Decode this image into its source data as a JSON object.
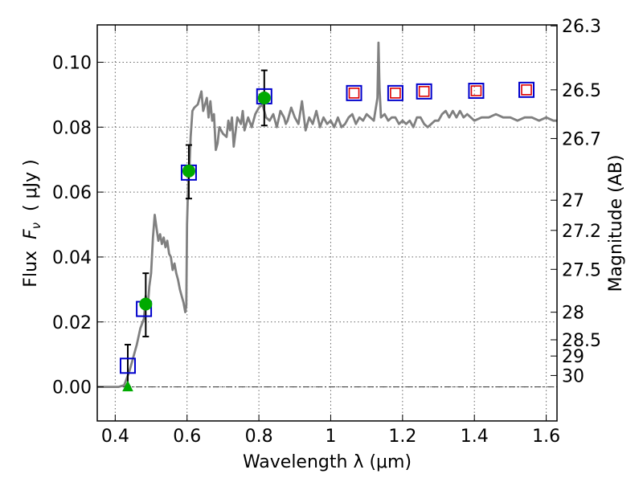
{
  "chart_data": {
    "type": "scatter",
    "xlabel": "Wavelength  λ (μm)",
    "ylabel": "Flux  F_ν  ( μJy )",
    "ylabel_parts": {
      "prefix": "Flux  ",
      "symbol": "F",
      "subscript": "ν",
      "unit": "  ( μJy )"
    },
    "y2label": "Magnitude (AB)",
    "xlim": [
      0.35,
      1.63
    ],
    "ylim": [
      -0.0105,
      0.1115
    ],
    "grid": true,
    "x_ticks": [
      {
        "value": 0.4,
        "label": "0.4"
      },
      {
        "value": 0.6,
        "label": "0.6"
      },
      {
        "value": 0.8,
        "label": "0.8"
      },
      {
        "value": 1.0,
        "label": "1"
      },
      {
        "value": 1.2,
        "label": "1.2"
      },
      {
        "value": 1.4,
        "label": "1.4"
      },
      {
        "value": 1.6,
        "label": "1.6"
      }
    ],
    "y_ticks": [
      {
        "value": 0.0,
        "label": "0.00"
      },
      {
        "value": 0.02,
        "label": "0.02"
      },
      {
        "value": 0.04,
        "label": "0.04"
      },
      {
        "value": 0.06,
        "label": "0.06"
      },
      {
        "value": 0.08,
        "label": "0.08"
      },
      {
        "value": 0.1,
        "label": "0.10"
      }
    ],
    "magnitude_ticks": [
      {
        "flux": 0.1112,
        "label": "26.3"
      },
      {
        "flux": 0.0915,
        "label": "26.5"
      },
      {
        "flux": 0.0765,
        "label": "26.7"
      },
      {
        "flux": 0.0575,
        "label": "27"
      },
      {
        "flux": 0.0482,
        "label": "27.2"
      },
      {
        "flux": 0.0362,
        "label": "27.5"
      },
      {
        "flux": 0.023,
        "label": "28"
      },
      {
        "flux": 0.0145,
        "label": "28.5"
      },
      {
        "flux": 0.0095,
        "label": "29"
      },
      {
        "flux": 0.0035,
        "label": "30"
      }
    ],
    "zero_line": {
      "y": 0.0,
      "style": "dash-dot"
    },
    "colors": {
      "model": "#808080",
      "blue_square": "#0000cc",
      "red_square": "#dd0000",
      "observed": "#00aa00",
      "errorbar": "#000000",
      "grid": "#666666"
    },
    "series": [
      {
        "name": "Model spectrum",
        "type": "line",
        "x": [
          0.35,
          0.41,
          0.425,
          0.43,
          0.44,
          0.45,
          0.46,
          0.47,
          0.48,
          0.485,
          0.49,
          0.495,
          0.5,
          0.505,
          0.51,
          0.515,
          0.52,
          0.525,
          0.53,
          0.535,
          0.54,
          0.545,
          0.55,
          0.555,
          0.56,
          0.565,
          0.57,
          0.575,
          0.58,
          0.585,
          0.59,
          0.595,
          0.598,
          0.6,
          0.603,
          0.607,
          0.61,
          0.615,
          0.62,
          0.63,
          0.64,
          0.645,
          0.65,
          0.655,
          0.66,
          0.665,
          0.67,
          0.675,
          0.68,
          0.685,
          0.69,
          0.7,
          0.71,
          0.715,
          0.72,
          0.725,
          0.73,
          0.74,
          0.75,
          0.755,
          0.76,
          0.77,
          0.78,
          0.79,
          0.8,
          0.81,
          0.82,
          0.83,
          0.84,
          0.85,
          0.86,
          0.87,
          0.875,
          0.88,
          0.89,
          0.9,
          0.91,
          0.92,
          0.93,
          0.94,
          0.95,
          0.96,
          0.97,
          0.98,
          0.99,
          1.0,
          1.01,
          1.02,
          1.03,
          1.04,
          1.05,
          1.06,
          1.07,
          1.08,
          1.09,
          1.1,
          1.11,
          1.12,
          1.13,
          1.133,
          1.136,
          1.14,
          1.15,
          1.16,
          1.17,
          1.18,
          1.19,
          1.2,
          1.21,
          1.22,
          1.23,
          1.24,
          1.25,
          1.26,
          1.27,
          1.28,
          1.29,
          1.3,
          1.31,
          1.32,
          1.33,
          1.34,
          1.35,
          1.36,
          1.37,
          1.38,
          1.39,
          1.4,
          1.42,
          1.44,
          1.46,
          1.48,
          1.5,
          1.52,
          1.54,
          1.56,
          1.58,
          1.6,
          1.62,
          1.63
        ],
        "y": [
          0.0,
          0.0,
          0.0005,
          0.002,
          0.005,
          0.009,
          0.013,
          0.018,
          0.021,
          0.028,
          0.024,
          0.031,
          0.035,
          0.046,
          0.053,
          0.049,
          0.045,
          0.047,
          0.044,
          0.046,
          0.043,
          0.045,
          0.041,
          0.04,
          0.036,
          0.038,
          0.035,
          0.033,
          0.03,
          0.028,
          0.026,
          0.023,
          0.025,
          0.05,
          0.062,
          0.068,
          0.077,
          0.085,
          0.086,
          0.087,
          0.091,
          0.085,
          0.087,
          0.089,
          0.083,
          0.088,
          0.082,
          0.084,
          0.073,
          0.075,
          0.08,
          0.078,
          0.077,
          0.082,
          0.079,
          0.083,
          0.074,
          0.083,
          0.081,
          0.085,
          0.079,
          0.083,
          0.08,
          0.084,
          0.086,
          0.087,
          0.083,
          0.082,
          0.084,
          0.08,
          0.085,
          0.083,
          0.081,
          0.082,
          0.086,
          0.083,
          0.081,
          0.088,
          0.079,
          0.083,
          0.081,
          0.085,
          0.08,
          0.083,
          0.081,
          0.082,
          0.08,
          0.083,
          0.08,
          0.081,
          0.083,
          0.084,
          0.081,
          0.083,
          0.082,
          0.084,
          0.083,
          0.082,
          0.089,
          0.106,
          0.092,
          0.083,
          0.084,
          0.082,
          0.083,
          0.083,
          0.081,
          0.082,
          0.081,
          0.082,
          0.08,
          0.083,
          0.083,
          0.081,
          0.08,
          0.081,
          0.082,
          0.082,
          0.084,
          0.085,
          0.083,
          0.085,
          0.083,
          0.085,
          0.083,
          0.084,
          0.083,
          0.082,
          0.083,
          0.083,
          0.084,
          0.083,
          0.083,
          0.082,
          0.083,
          0.083,
          0.082,
          0.083,
          0.082,
          0.082
        ]
      },
      {
        "name": "Blue square markers",
        "type": "scatter",
        "marker": "square",
        "x": [
          0.435,
          0.48,
          0.605,
          0.815,
          1.065,
          1.18,
          1.26,
          1.405,
          1.545
        ],
        "y": [
          0.0065,
          0.024,
          0.066,
          0.0895,
          0.0905,
          0.0905,
          0.091,
          0.0912,
          0.0915
        ]
      },
      {
        "name": "Red square markers",
        "type": "scatter",
        "marker": "square",
        "x": [
          1.065,
          1.18,
          1.26,
          1.405,
          1.545
        ],
        "y": [
          0.0905,
          0.0905,
          0.091,
          0.0912,
          0.0915
        ]
      },
      {
        "name": "Green observed points",
        "type": "scatter",
        "marker": "circle",
        "x": [
          0.485,
          0.605,
          0.815
        ],
        "y": [
          0.0255,
          0.0665,
          0.089
        ]
      },
      {
        "name": "Green upper-limit point",
        "type": "scatter",
        "marker": "triangle",
        "x": [
          0.435
        ],
        "y": [
          0.0
        ]
      },
      {
        "name": "Error bars",
        "type": "errorbar",
        "x": [
          0.435,
          0.485,
          0.605,
          0.815
        ],
        "low": [
          0.0,
          0.0155,
          0.058,
          0.0805
        ],
        "high": [
          0.013,
          0.035,
          0.0745,
          0.0975
        ]
      }
    ]
  }
}
